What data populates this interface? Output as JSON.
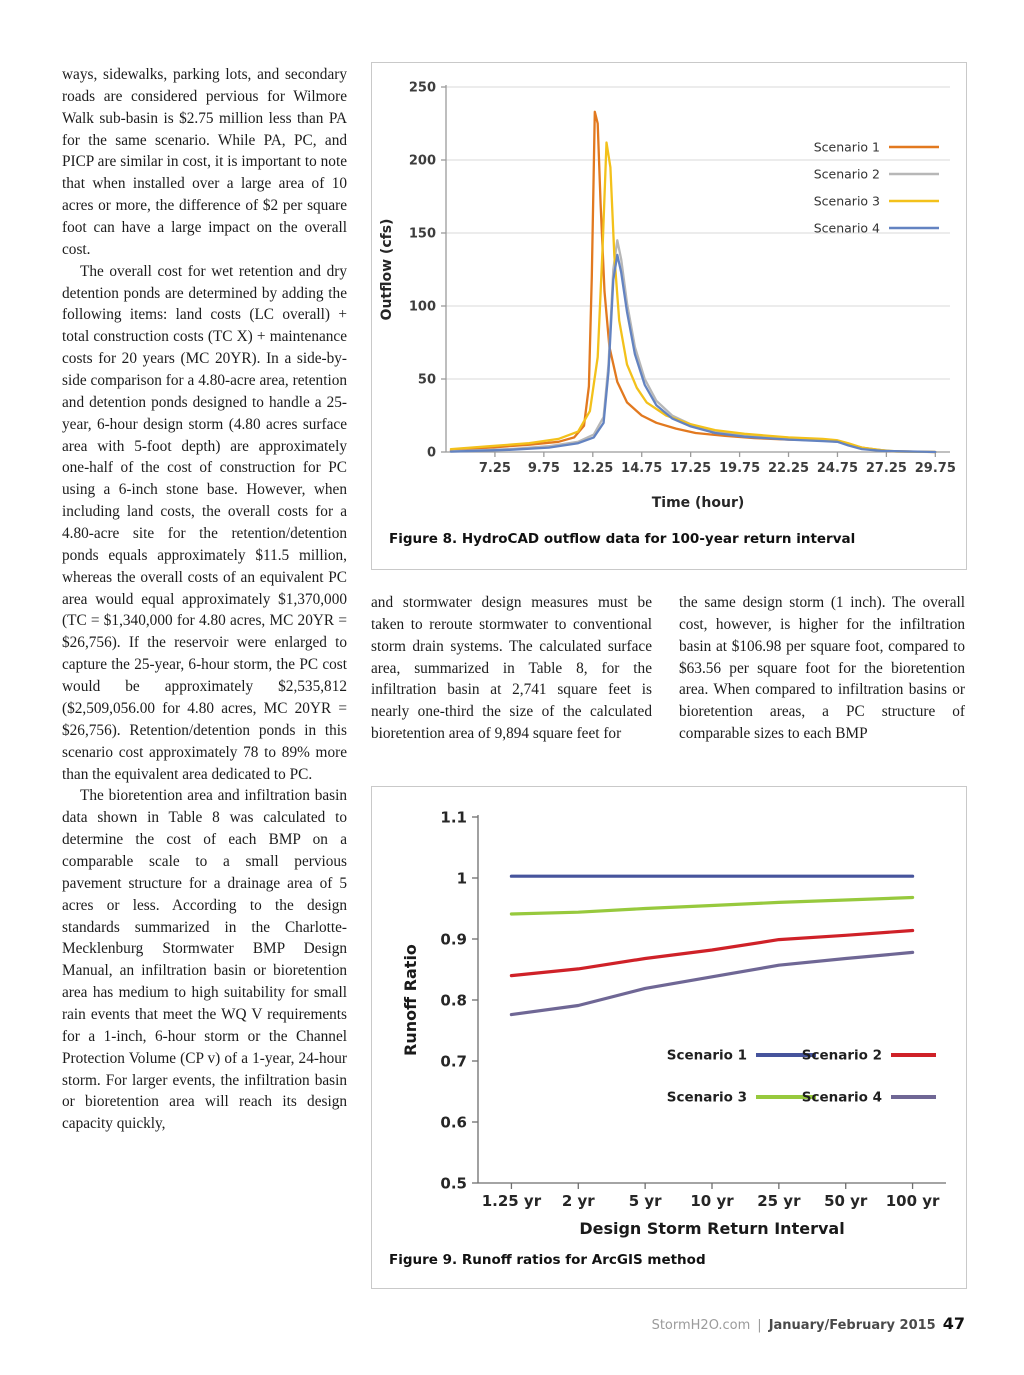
{
  "article": {
    "left_column": [
      "ways, sidewalks, parking lots, and secondary roads are considered pervious for Wilmore Walk sub-basin is $2.75 million less than PA for the same scenario. While PA, PC, and PICP are similar in cost, it is important to note that when installed over a large area of 10 acres or more, the difference of $2 per square foot can have a large impact on the overall cost.",
      "The overall cost for wet retention and dry detention ponds are determined by adding the following items: land costs (LC overall) + total construction costs (TC X) + maintenance costs for 20 years (MC 20YR). In a side-by-side comparison for a 4.80-acre area, retention and detention ponds designed to handle a 25-year, 6-hour design storm (4.80 acres surface area with 5-foot depth) are approximately one-half of the cost of construction for PC using a 6-inch stone base. However, when including land costs, the overall costs for a 4.80-acre site for the retention/detention ponds equals approximately $11.5 million, whereas the overall costs of an equivalent PC area would equal approximately $1,370,000 (TC = $1,340,000 for 4.80 acres, MC 20YR = $26,756). If the reservoir were enlarged to capture the 25-year, 6-hour storm, the PC cost would be approximately $2,535,812 ($2,509,056.00 for 4.80 acres, MC 20YR = $26,756). Retention/detention ponds in this scenario cost approximately 78 to 89% more than the equivalent area dedicated to PC.",
      "The bioretention area and infiltration basin data shown in Table 8 was calculated to determine the cost of each BMP on a comparable scale to a small pervious pavement structure for a drainage area of 5 acres or less. According to the design standards summarized in the Charlotte-Mecklenburg Stormwater BMP Design Manual, an infiltration basin or bioretention area has medium to high suitability for small rain events that meet the WQ V requirements for a 1-inch, 6-hour storm or the Channel Protection Volume (CP v) of a 1-year, 24-hour storm. For larger events, the infiltration basin or bioretention area will reach its design capacity quickly,"
    ],
    "middle_column": "and stormwater design measures must be taken to reroute stormwater to conventional storm drain systems. The calculated surface area, summarized in Table 8, for the infiltration basin at 2,741 square feet is nearly one-third the size of the calculated bioretention area of 9,894 square feet for",
    "right_column": "the same design storm (1 inch). The overall cost, however, is higher for the infiltration basin at $106.98 per square foot, compared to $63.56 per square foot for the bioretention area. When compared to infiltration basins or bioretention areas, a PC structure of comparable sizes to each BMP"
  },
  "figures": {
    "fig8": {
      "caption": "Figure 8. HydroCAD outflow data for 100-year return interval"
    },
    "fig9": {
      "caption": "Figure 9. Runoff ratios for ArcGIS method"
    }
  },
  "footer": {
    "site": "StormH2O.com",
    "separator": "|",
    "issue": "January/February 2015",
    "page_number": "47"
  },
  "chart_data": [
    {
      "id": "fig8",
      "type": "line",
      "title": "HydroCAD outflow data for 100-year return interval",
      "xlabel": "Time (hour)",
      "ylabel": "Outflow (cfs)",
      "xlim": [
        4.75,
        30.5
      ],
      "ylim": [
        0,
        250
      ],
      "xticks": [
        7.25,
        9.75,
        12.25,
        14.75,
        17.25,
        19.75,
        22.25,
        24.75,
        27.25,
        29.75
      ],
      "xtick_labels": [
        "7.25",
        "9.75",
        "12.25",
        "14.75",
        "17.25",
        "19.75",
        "22.25",
        "24.75",
        "27.25",
        "29.75"
      ],
      "yticks": [
        0,
        50,
        100,
        150,
        200,
        250
      ],
      "ytick_labels": [
        "0",
        "50",
        "100",
        "150",
        "200",
        "250"
      ],
      "grid": "horizontal",
      "legend_position": "inside-right",
      "series": [
        {
          "name": "Scenario 1",
          "color": "#e2791f",
          "points": [
            [
              5,
              1
            ],
            [
              7,
              3
            ],
            [
              9,
              5
            ],
            [
              10.5,
              7
            ],
            [
              11.3,
              10
            ],
            [
              11.8,
              18
            ],
            [
              12.05,
              45
            ],
            [
              12.2,
              120
            ],
            [
              12.35,
              233
            ],
            [
              12.5,
              225
            ],
            [
              12.65,
              170
            ],
            [
              12.85,
              110
            ],
            [
              13.1,
              72
            ],
            [
              13.5,
              48
            ],
            [
              14,
              34
            ],
            [
              14.75,
              25
            ],
            [
              15.5,
              20
            ],
            [
              16.5,
              16
            ],
            [
              17.5,
              13
            ],
            [
              19,
              11
            ],
            [
              20.5,
              9.5
            ],
            [
              22.25,
              8.5
            ],
            [
              24,
              8
            ],
            [
              24.75,
              7.5
            ],
            [
              25.3,
              5.5
            ],
            [
              26,
              3
            ],
            [
              26.8,
              1.5
            ],
            [
              27.5,
              0.5
            ],
            [
              29.75,
              0
            ]
          ]
        },
        {
          "name": "Scenario 2",
          "color": "#b7b7b7",
          "points": [
            [
              5,
              0.5
            ],
            [
              8,
              2
            ],
            [
              10,
              4
            ],
            [
              11.5,
              7
            ],
            [
              12.3,
              12
            ],
            [
              12.8,
              24
            ],
            [
              13.05,
              60
            ],
            [
              13.3,
              125
            ],
            [
              13.5,
              145
            ],
            [
              13.7,
              132
            ],
            [
              14,
              102
            ],
            [
              14.4,
              72
            ],
            [
              14.9,
              50
            ],
            [
              15.5,
              35
            ],
            [
              16.3,
              25
            ],
            [
              17.25,
              19
            ],
            [
              18.5,
              14
            ],
            [
              20,
              11
            ],
            [
              22.25,
              9
            ],
            [
              24,
              8
            ],
            [
              24.75,
              7
            ],
            [
              25.3,
              5
            ],
            [
              26,
              2.5
            ],
            [
              27,
              1
            ],
            [
              27.8,
              0.3
            ],
            [
              29.75,
              0
            ]
          ]
        },
        {
          "name": "Scenario 3",
          "color": "#f3c11b",
          "points": [
            [
              5,
              2
            ],
            [
              7,
              4
            ],
            [
              9,
              6
            ],
            [
              10.5,
              9
            ],
            [
              11.5,
              14
            ],
            [
              12.1,
              28
            ],
            [
              12.5,
              65
            ],
            [
              12.75,
              140
            ],
            [
              12.95,
              212
            ],
            [
              13.15,
              195
            ],
            [
              13.35,
              135
            ],
            [
              13.6,
              90
            ],
            [
              14,
              60
            ],
            [
              14.5,
              44
            ],
            [
              15,
              34
            ],
            [
              16,
              25
            ],
            [
              17.25,
              19
            ],
            [
              18.5,
              15
            ],
            [
              20,
              12.5
            ],
            [
              22.25,
              10
            ],
            [
              24,
              9
            ],
            [
              24.75,
              8
            ],
            [
              25.3,
              6
            ],
            [
              26,
              3
            ],
            [
              27,
              1.2
            ],
            [
              27.8,
              0.4
            ],
            [
              29.75,
              0
            ]
          ]
        },
        {
          "name": "Scenario 4",
          "color": "#6383c1",
          "points": [
            [
              5,
              0.3
            ],
            [
              8,
              1.5
            ],
            [
              10,
              3
            ],
            [
              11.5,
              6
            ],
            [
              12.3,
              10
            ],
            [
              12.8,
              20
            ],
            [
              13.05,
              55
            ],
            [
              13.3,
              118
            ],
            [
              13.5,
              135
            ],
            [
              13.7,
              123
            ],
            [
              14,
              96
            ],
            [
              14.4,
              67
            ],
            [
              14.9,
              46
            ],
            [
              15.5,
              32
            ],
            [
              16.3,
              23
            ],
            [
              17.25,
              17.5
            ],
            [
              18.5,
              13
            ],
            [
              20,
              10.5
            ],
            [
              22.25,
              8.5
            ],
            [
              24,
              7.5
            ],
            [
              24.75,
              7
            ],
            [
              25.3,
              4.5
            ],
            [
              26,
              2
            ],
            [
              27,
              0.8
            ],
            [
              29.75,
              0
            ]
          ]
        }
      ]
    },
    {
      "id": "fig9",
      "type": "line",
      "title": "Runoff ratios for ArcGIS method",
      "xlabel": "Design Storm Return Interval",
      "ylabel": "Runoff Ratio",
      "categories": [
        "1.25 yr",
        "2 yr",
        "5 yr",
        "10 yr",
        "25 yr",
        "50 yr",
        "100 yr"
      ],
      "ylim": [
        0.5,
        1.1
      ],
      "yticks": [
        0.5,
        0.6,
        0.7,
        0.8,
        0.9,
        1,
        1.1
      ],
      "ytick_labels": [
        "0.5",
        "0.6",
        "0.7",
        "0.8",
        "0.9",
        "1",
        "1.1"
      ],
      "grid": "none",
      "legend_position": "inside",
      "series": [
        {
          "name": "Scenario 1",
          "color": "#46549c",
          "values": [
            1.003,
            1.003,
            1.003,
            1.003,
            1.003,
            1.003,
            1.003
          ]
        },
        {
          "name": "Scenario 2",
          "color": "#cf2128",
          "values": [
            0.84,
            0.851,
            0.868,
            0.882,
            0.899,
            0.906,
            0.914
          ]
        },
        {
          "name": "Scenario 3",
          "color": "#97c93d",
          "values": [
            0.941,
            0.944,
            0.95,
            0.955,
            0.96,
            0.964,
            0.968
          ]
        },
        {
          "name": "Scenario 4",
          "color": "#6f6795",
          "values": [
            0.776,
            0.791,
            0.819,
            0.838,
            0.857,
            0.868,
            0.878
          ]
        }
      ]
    }
  ]
}
